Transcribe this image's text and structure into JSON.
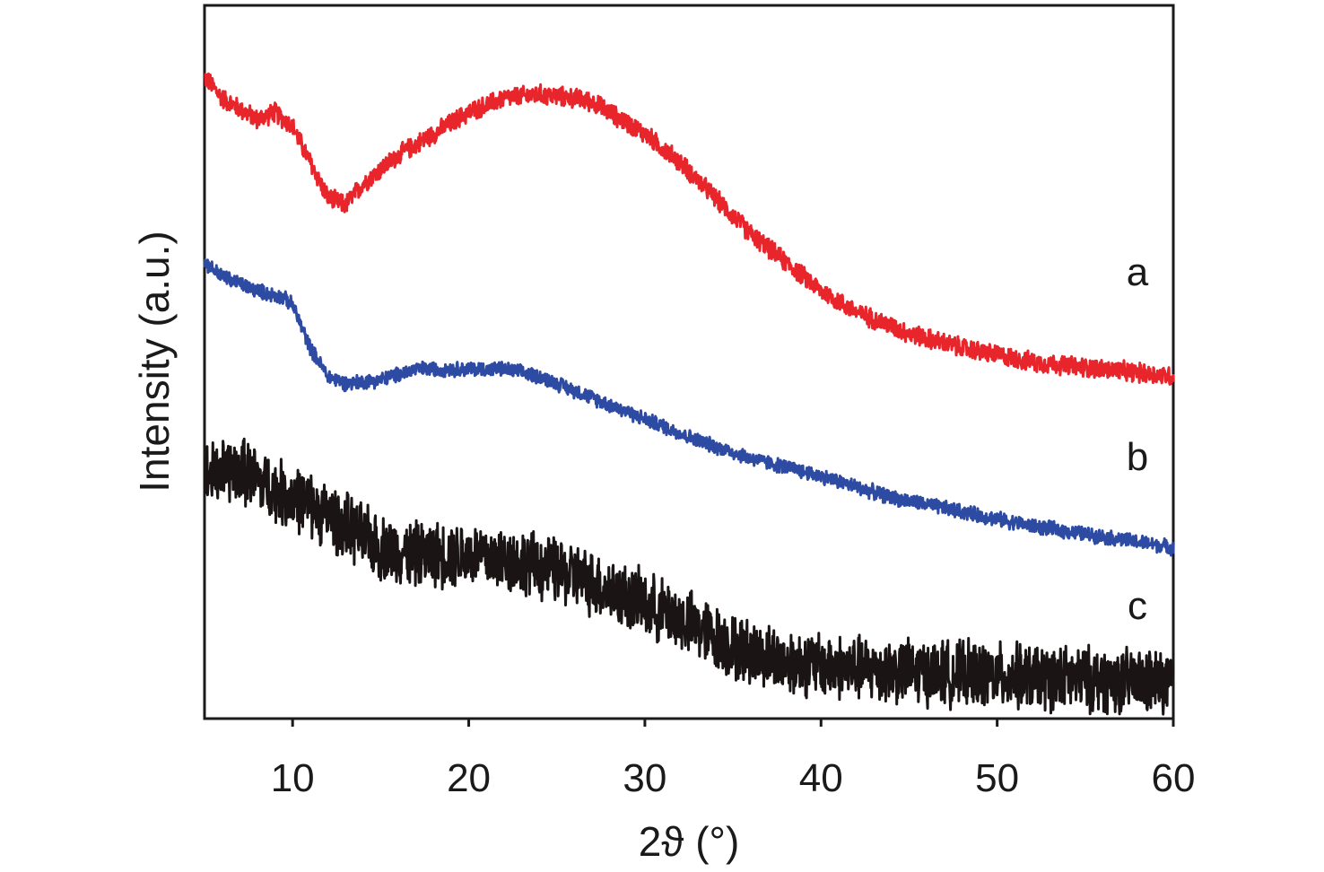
{
  "chart_data": {
    "type": "line",
    "title": "",
    "xlabel": "2ϑ (°)",
    "ylabel": "Intensity (a.u.)",
    "xlim": [
      5,
      60
    ],
    "ylim": [
      0,
      1
    ],
    "x_ticks": [
      10,
      20,
      30,
      40,
      50,
      60
    ],
    "y_ticks": [],
    "grid": false,
    "legend": "none",
    "series": [
      {
        "name": "a",
        "color": "#e8252b",
        "noise": 0.012,
        "points": [
          [
            5,
            0.9
          ],
          [
            6,
            0.87
          ],
          [
            8,
            0.84
          ],
          [
            9,
            0.85
          ],
          [
            10,
            0.83
          ],
          [
            11,
            0.78
          ],
          [
            12,
            0.73
          ],
          [
            13,
            0.72
          ],
          [
            14,
            0.75
          ],
          [
            16,
            0.79
          ],
          [
            18,
            0.82
          ],
          [
            20,
            0.85
          ],
          [
            22,
            0.87
          ],
          [
            24,
            0.875
          ],
          [
            26,
            0.87
          ],
          [
            27,
            0.865
          ],
          [
            28,
            0.85
          ],
          [
            30,
            0.82
          ],
          [
            32,
            0.78
          ],
          [
            34,
            0.73
          ],
          [
            36,
            0.68
          ],
          [
            38,
            0.64
          ],
          [
            40,
            0.6
          ],
          [
            42,
            0.57
          ],
          [
            45,
            0.54
          ],
          [
            48,
            0.52
          ],
          [
            52,
            0.5
          ],
          [
            56,
            0.49
          ],
          [
            60,
            0.48
          ]
        ]
      },
      {
        "name": "b",
        "color": "#2e4ba3",
        "noise": 0.009,
        "points": [
          [
            5,
            0.64
          ],
          [
            6,
            0.62
          ],
          [
            8,
            0.6
          ],
          [
            9.5,
            0.59
          ],
          [
            10,
            0.58
          ],
          [
            11,
            0.52
          ],
          [
            12,
            0.48
          ],
          [
            13,
            0.47
          ],
          [
            15,
            0.475
          ],
          [
            17,
            0.49
          ],
          [
            20,
            0.49
          ],
          [
            22,
            0.49
          ],
          [
            24,
            0.48
          ],
          [
            26,
            0.46
          ],
          [
            28,
            0.44
          ],
          [
            30,
            0.42
          ],
          [
            33,
            0.39
          ],
          [
            36,
            0.365
          ],
          [
            40,
            0.34
          ],
          [
            44,
            0.31
          ],
          [
            48,
            0.29
          ],
          [
            52,
            0.27
          ],
          [
            56,
            0.255
          ],
          [
            60,
            0.24
          ]
        ]
      },
      {
        "name": "c",
        "color": "#1a1414",
        "noise": 0.04,
        "points": [
          [
            5,
            0.34
          ],
          [
            7,
            0.35
          ],
          [
            9,
            0.32
          ],
          [
            11,
            0.3
          ],
          [
            13,
            0.27
          ],
          [
            15,
            0.24
          ],
          [
            17,
            0.23
          ],
          [
            20,
            0.23
          ],
          [
            23,
            0.22
          ],
          [
            26,
            0.2
          ],
          [
            29,
            0.17
          ],
          [
            32,
            0.14
          ],
          [
            35,
            0.1
          ],
          [
            38,
            0.08
          ],
          [
            42,
            0.07
          ],
          [
            46,
            0.065
          ],
          [
            50,
            0.06
          ],
          [
            55,
            0.055
          ],
          [
            60,
            0.05
          ]
        ]
      }
    ],
    "annotations": [
      "a",
      "b",
      "c"
    ]
  }
}
